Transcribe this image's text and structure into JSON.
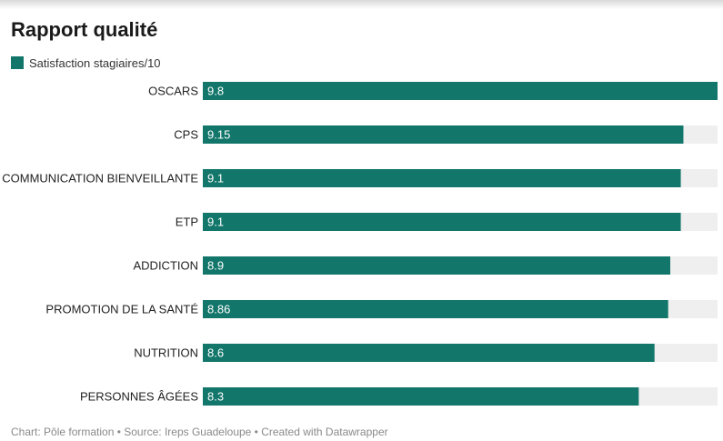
{
  "title": "Rapport qualité",
  "footer": "Chart: Pôle formation • Source: Ireps Guadeloupe • Created with Datawrapper",
  "colors": {
    "bar": "#12766a",
    "track": "#efefef",
    "bar_label": "#ffffff",
    "category_label": "#222222"
  },
  "chart_data": {
    "type": "bar",
    "orientation": "horizontal",
    "categories": [
      "OSCARS",
      "CPS",
      "COMMUNICATION BIENVEILLANTE",
      "ETP",
      "ADDICTION",
      "PROMOTION DE LA SANTÉ",
      "NUTRITION",
      "PERSONNES ÂGÉES"
    ],
    "series": [
      {
        "name": "Satisfaction stagiaires/10",
        "values": [
          9.8,
          9.15,
          9.1,
          9.1,
          8.9,
          8.86,
          8.6,
          8.3
        ]
      }
    ],
    "value_labels": [
      "9.8",
      "9.15",
      "9.1",
      "9.1",
      "8.9",
      "8.86",
      "8.6",
      "8.3"
    ],
    "xlim": [
      0,
      9.8
    ],
    "grid": false,
    "legend_position": "top-left"
  }
}
